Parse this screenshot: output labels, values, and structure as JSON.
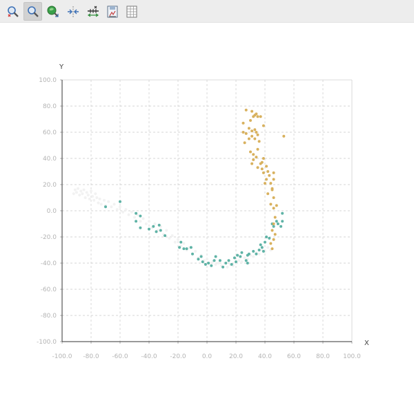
{
  "toolbar": {
    "tools": [
      {
        "name": "zoom-select-icon",
        "active": false
      },
      {
        "name": "zoom-icon",
        "active": true
      },
      {
        "name": "pan-icon",
        "active": false
      },
      {
        "name": "reset-axes-icon",
        "active": false
      },
      {
        "name": "axis-settings-icon",
        "active": false
      },
      {
        "name": "save-image-icon",
        "active": false
      },
      {
        "name": "data-table-icon",
        "active": false
      }
    ]
  },
  "chart_data": {
    "type": "scatter",
    "title": "",
    "xlabel": "X",
    "ylabel": "Y",
    "xlim": [
      -100,
      100
    ],
    "ylim": [
      -100,
      100
    ],
    "xticks": [
      "-100.0",
      "-80.0",
      "-60.0",
      "-40.0",
      "-20.0",
      "0.0",
      "20.0",
      "40.0",
      "60.0",
      "80.0",
      "100.0"
    ],
    "yticks": [
      "100.0",
      "80.0",
      "60.0",
      "40.0",
      "20.0",
      "0.0",
      "-20.0",
      "-40.0",
      "-60.0",
      "-80.0",
      "-100.0"
    ],
    "grid": true,
    "series": [
      {
        "color": "#f2f2f2",
        "points": [
          [
            -92,
            13
          ],
          [
            -91,
            16
          ],
          [
            -90,
            14
          ],
          [
            -89,
            17
          ],
          [
            -88,
            12
          ],
          [
            -87,
            15
          ],
          [
            -86,
            13
          ],
          [
            -85,
            16
          ],
          [
            -84,
            10
          ],
          [
            -83,
            14
          ],
          [
            -82,
            12
          ],
          [
            -81,
            9
          ],
          [
            -80,
            15
          ],
          [
            -79,
            11
          ],
          [
            -78,
            8
          ],
          [
            -77,
            13
          ],
          [
            -76,
            10
          ],
          [
            -75,
            6
          ],
          [
            -74,
            9
          ],
          [
            -73,
            5
          ],
          [
            -71,
            8
          ],
          [
            -70,
            4
          ],
          [
            -68,
            7
          ],
          [
            -66,
            3
          ],
          [
            -64,
            5
          ],
          [
            -62,
            1
          ],
          [
            -60,
            3
          ],
          [
            -58,
            -1
          ],
          [
            -56,
            1
          ],
          [
            -54,
            -3
          ],
          [
            -52,
            -1
          ],
          [
            -50,
            -5
          ],
          [
            -48,
            -3
          ],
          [
            -46,
            -8
          ],
          [
            -44,
            -6
          ],
          [
            -42,
            -10
          ],
          [
            -40,
            -8
          ],
          [
            -38,
            -13
          ],
          [
            -36,
            -10
          ],
          [
            -34,
            -15
          ],
          [
            -32,
            -12
          ],
          [
            -30,
            -18
          ],
          [
            -28,
            -15
          ],
          [
            -26,
            -21
          ],
          [
            -24,
            -19
          ],
          [
            -22,
            -24
          ],
          [
            -20,
            -22
          ],
          [
            -18,
            -27
          ],
          [
            -16,
            -25
          ],
          [
            -14,
            -30
          ],
          [
            -12,
            -28
          ],
          [
            -10,
            -33
          ],
          [
            -8,
            -31
          ],
          [
            -6,
            -36
          ],
          [
            -4,
            -34
          ],
          [
            -2,
            -38
          ],
          [
            0,
            -37
          ],
          [
            2,
            -40
          ],
          [
            4,
            -39
          ],
          [
            6,
            -41
          ],
          [
            8,
            -40
          ],
          [
            10,
            -42
          ],
          [
            12,
            -40
          ],
          [
            14,
            -43
          ],
          [
            16,
            -41
          ],
          [
            18,
            -42
          ],
          [
            20,
            -40
          ],
          [
            22,
            -38
          ],
          [
            24,
            -39
          ],
          [
            26,
            -36
          ],
          [
            28,
            -37
          ],
          [
            30,
            -34
          ],
          [
            32,
            -35
          ],
          [
            34,
            -32
          ],
          [
            36,
            -33
          ],
          [
            38,
            -30
          ],
          [
            40,
            -31
          ],
          [
            42,
            -28
          ],
          [
            44,
            -30
          ]
        ]
      },
      {
        "color": "#5fb3a6",
        "points": [
          [
            -70,
            3
          ],
          [
            -60,
            7
          ],
          [
            -49,
            -2
          ],
          [
            -46,
            -4
          ],
          [
            -49,
            -8
          ],
          [
            -46,
            -13
          ],
          [
            -37,
            -12
          ],
          [
            -33,
            -11
          ],
          [
            -40,
            -14
          ],
          [
            -35,
            -16
          ],
          [
            -32,
            -15
          ],
          [
            -29,
            -19
          ],
          [
            -19,
            -28
          ],
          [
            -18,
            -24
          ],
          [
            -16,
            -29
          ],
          [
            -14,
            -29
          ],
          [
            -11,
            -28
          ],
          [
            -10,
            -33
          ],
          [
            -6,
            -37
          ],
          [
            -4,
            -35
          ],
          [
            -3,
            -39
          ],
          [
            -1,
            -41
          ],
          [
            1,
            -40
          ],
          [
            3,
            -42
          ],
          [
            5,
            -38
          ],
          [
            6,
            -35
          ],
          [
            9,
            -38
          ],
          [
            11,
            -43
          ],
          [
            13,
            -40
          ],
          [
            15,
            -38
          ],
          [
            17,
            -41
          ],
          [
            19,
            -36
          ],
          [
            20,
            -39
          ],
          [
            21,
            -34
          ],
          [
            23,
            -35
          ],
          [
            24,
            -32
          ],
          [
            27,
            -38
          ],
          [
            28,
            -34
          ],
          [
            28,
            -40
          ],
          [
            29,
            -33
          ],
          [
            32,
            -31
          ],
          [
            34,
            -33
          ],
          [
            36,
            -30
          ],
          [
            37,
            -26
          ],
          [
            38,
            -28
          ],
          [
            39,
            -31
          ],
          [
            40,
            -24
          ],
          [
            41,
            -20
          ],
          [
            43,
            -21
          ],
          [
            45,
            -10
          ],
          [
            46,
            -12
          ],
          [
            48,
            -8
          ],
          [
            49,
            -10
          ],
          [
            51,
            -12
          ],
          [
            52,
            -8
          ],
          [
            52,
            -2
          ]
        ]
      },
      {
        "color": "#d8b15e",
        "points": [
          [
            27,
            77
          ],
          [
            31,
            76
          ],
          [
            33,
            73
          ],
          [
            34,
            74
          ],
          [
            32,
            72
          ],
          [
            30,
            69
          ],
          [
            25,
            67
          ],
          [
            35,
            72
          ],
          [
            37,
            72
          ],
          [
            39,
            65
          ],
          [
            25,
            60
          ],
          [
            29,
            63
          ],
          [
            31,
            61
          ],
          [
            33,
            62
          ],
          [
            35,
            58
          ],
          [
            34,
            60
          ],
          [
            31,
            57
          ],
          [
            29,
            55
          ],
          [
            27,
            59
          ],
          [
            26,
            52
          ],
          [
            33,
            55
          ],
          [
            36,
            53
          ],
          [
            30,
            45
          ],
          [
            32,
            43
          ],
          [
            35,
            47
          ],
          [
            34,
            41
          ],
          [
            31,
            36
          ],
          [
            32,
            39
          ],
          [
            35,
            33
          ],
          [
            37,
            36
          ],
          [
            38,
            37
          ],
          [
            39,
            40
          ],
          [
            38,
            32
          ],
          [
            39,
            29
          ],
          [
            41,
            34
          ],
          [
            42,
            30
          ],
          [
            41,
            24
          ],
          [
            43,
            27
          ],
          [
            40,
            21
          ],
          [
            44,
            21
          ],
          [
            45,
            17
          ],
          [
            42,
            13
          ],
          [
            46,
            29
          ],
          [
            46,
            24
          ],
          [
            45,
            16
          ],
          [
            46,
            10
          ],
          [
            44,
            5
          ],
          [
            48,
            4
          ],
          [
            46,
            2
          ],
          [
            47,
            -5
          ],
          [
            46,
            -10
          ],
          [
            45,
            -15
          ],
          [
            47,
            -18
          ],
          [
            46,
            -22
          ],
          [
            44,
            -25
          ],
          [
            45,
            -29
          ],
          [
            53,
            57
          ]
        ]
      }
    ]
  }
}
